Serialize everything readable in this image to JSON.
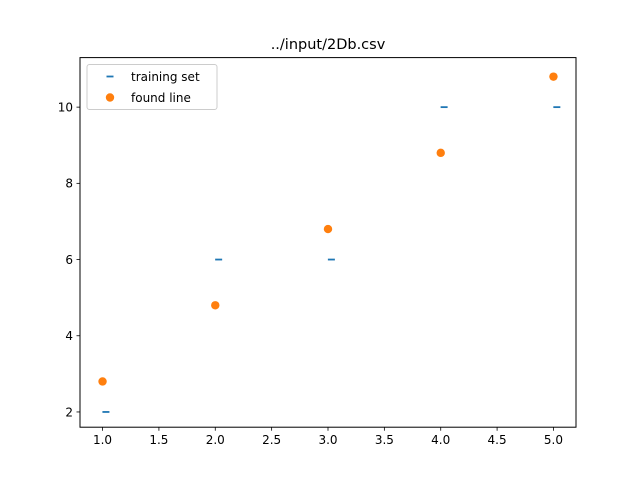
{
  "chart_data": {
    "type": "scatter",
    "title": "../input/2Db.csv",
    "xlabel": "",
    "ylabel": "",
    "xlim": [
      0.8,
      5.2
    ],
    "ylim": [
      1.6,
      11.3
    ],
    "xticks": [
      1.0,
      1.5,
      2.0,
      2.5,
      3.0,
      3.5,
      4.0,
      4.5,
      5.0
    ],
    "xtick_labels": [
      "1.0",
      "1.5",
      "2.0",
      "2.5",
      "3.0",
      "3.5",
      "4.0",
      "4.5",
      "5.0"
    ],
    "yticks": [
      2,
      4,
      6,
      8,
      10
    ],
    "ytick_labels": [
      "2",
      "4",
      "6",
      "8",
      "10"
    ],
    "grid": false,
    "legend_position": "top-left",
    "series": [
      {
        "name": "training set",
        "marker": "dash",
        "color": "#1f77b4",
        "x": [
          1.03,
          2.03,
          3.03,
          4.03,
          5.03
        ],
        "y": [
          2,
          6,
          6,
          10,
          10
        ]
      },
      {
        "name": "found line",
        "marker": "circle",
        "color": "#ff7f0e",
        "x": [
          1,
          2,
          3,
          4,
          5
        ],
        "y": [
          2.8,
          4.8,
          6.8,
          8.8,
          10.8
        ]
      }
    ]
  }
}
